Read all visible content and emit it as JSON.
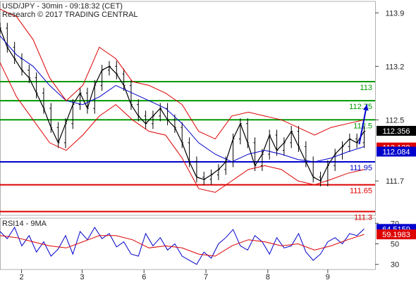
{
  "header": {
    "title": "USD/JPY - 30min - 09:18:32 (CET)",
    "copyright": "Research © 2017 TRADING CENTRAL"
  },
  "chart_data": [
    {
      "type": "line",
      "name": "price-panel",
      "title": "USD/JPY - 30min - 09:18:32 (CET)",
      "x_ticks": [
        "2",
        "3",
        "6",
        "7",
        "8",
        "9"
      ],
      "x_tick_positions_session": [
        0.65,
        2.48,
        4.35,
        6.22,
        8.09,
        9.9
      ],
      "x_range": [
        0,
        11.33
      ],
      "y_ticks": [
        111.7,
        112.5,
        113.2,
        113.9
      ],
      "y_tick_labels": [
        "111.7",
        "112.5",
        "113.2",
        "113.9"
      ],
      "ylim": [
        111.25,
        114.05
      ],
      "levels": [
        {
          "label": "113",
          "value": 113.0,
          "color": "#009900"
        },
        {
          "label": "112.75",
          "value": 112.75,
          "color": "#009900"
        },
        {
          "label": "112.5",
          "value": 112.5,
          "color": "#009900"
        },
        {
          "label": "111.95",
          "value": 111.95,
          "color": "#0000cc"
        },
        {
          "label": "111.65",
          "value": 111.65,
          "color": "#dd0000"
        },
        {
          "label": "111.3",
          "value": 111.3,
          "color": "#dd0000"
        }
      ],
      "price_badges": [
        {
          "label": "112.356",
          "value": 112.356,
          "color": "#000000"
        },
        {
          "label": "112.138",
          "value": 112.138,
          "color": "#dd0000"
        },
        {
          "label": "112.084",
          "value": 112.084,
          "color": "#0000cc"
        }
      ],
      "series": [
        {
          "role": "price",
          "color": "#000000",
          "x": [
            0,
            0.22,
            0.44,
            0.66,
            0.88,
            1.1,
            1.32,
            1.54,
            1.76,
            1.98,
            2.2,
            2.42,
            2.64,
            2.86,
            3.08,
            3.3,
            3.52,
            3.74,
            3.96,
            4.18,
            4.4,
            4.62,
            4.84,
            5.06,
            5.28,
            5.5,
            5.72,
            5.94,
            6.16,
            6.38,
            6.6,
            6.82,
            7.04,
            7.26,
            7.48,
            7.7,
            7.92,
            8.14,
            8.36,
            8.58,
            8.8,
            9.02,
            9.24,
            9.46,
            9.68,
            9.9,
            10.12,
            10.34,
            10.56,
            10.78,
            11.0
          ],
          "y": [
            113.7,
            113.45,
            113.3,
            113.15,
            113.05,
            112.85,
            112.65,
            112.4,
            112.2,
            112.45,
            112.7,
            112.85,
            112.65,
            112.95,
            113.15,
            113.2,
            113.1,
            112.95,
            112.7,
            112.55,
            112.45,
            112.55,
            112.65,
            112.5,
            112.4,
            112.2,
            111.95,
            111.75,
            111.72,
            111.78,
            111.85,
            111.95,
            112.25,
            112.45,
            112.2,
            111.9,
            112.05,
            112.3,
            112.1,
            112.2,
            112.35,
            112.15,
            111.95,
            111.75,
            111.7,
            111.9,
            112.05,
            112.15,
            112.25,
            112.2,
            112.35
          ]
        },
        {
          "role": "moving-average",
          "color": "#0000cc",
          "x": [
            0,
            0.5,
            1,
            1.5,
            2,
            2.5,
            3,
            3.5,
            4,
            4.5,
            5,
            5.5,
            6,
            6.5,
            7,
            7.5,
            8,
            8.5,
            9,
            9.5,
            10,
            10.5,
            11.0
          ],
          "y": [
            113.6,
            113.35,
            113.2,
            112.95,
            112.75,
            112.7,
            112.8,
            112.95,
            112.85,
            112.75,
            112.65,
            112.45,
            112.2,
            112.05,
            111.95,
            112.05,
            112.1,
            112.05,
            111.98,
            111.95,
            112.0,
            112.08,
            112.15
          ]
        },
        {
          "role": "upper-band",
          "color": "#dd0000",
          "x": [
            0,
            0.5,
            1,
            1.5,
            2,
            2.5,
            3,
            3.5,
            4,
            4.5,
            5,
            5.5,
            6,
            6.5,
            7,
            7.5,
            8,
            8.5,
            9,
            9.5,
            10,
            10.5,
            11.0
          ],
          "y": [
            113.95,
            113.85,
            113.55,
            113.05,
            112.75,
            112.95,
            113.45,
            113.3,
            113.0,
            112.95,
            112.85,
            112.7,
            112.35,
            112.25,
            112.55,
            112.6,
            112.55,
            112.5,
            112.4,
            112.3,
            112.4,
            112.45,
            112.5
          ]
        },
        {
          "role": "lower-band",
          "color": "#dd0000",
          "x": [
            0,
            0.5,
            1,
            1.5,
            2,
            2.5,
            3,
            3.5,
            4,
            4.5,
            5,
            5.5,
            6,
            6.5,
            7,
            7.5,
            8,
            8.5,
            9,
            9.5,
            10,
            10.5,
            11.0
          ],
          "y": [
            113.25,
            112.8,
            112.5,
            112.2,
            112.1,
            112.3,
            112.55,
            112.7,
            112.5,
            112.35,
            112.3,
            112.0,
            111.6,
            111.55,
            111.7,
            111.85,
            111.9,
            111.85,
            111.7,
            111.65,
            111.72,
            111.8,
            111.85
          ]
        }
      ],
      "forecast_arrow": {
        "from": [
          10.85,
          112.18
        ],
        "to": [
          11.08,
          112.7
        ],
        "color": "#0000cc"
      }
    },
    {
      "type": "line",
      "name": "rsi-panel",
      "title": "RSI14 - 9MA",
      "x_ticks": [
        "2",
        "3",
        "6",
        "7",
        "8",
        "9"
      ],
      "x_range": [
        0,
        11.33
      ],
      "y_ticks": [
        30,
        50,
        70
      ],
      "y_tick_labels": [
        "30",
        "50",
        "70"
      ],
      "ylim": [
        25,
        75
      ],
      "badges": [
        {
          "label": "64.5159",
          "value": 64.5159,
          "color": "#0000cc"
        },
        {
          "label": "59.1983",
          "value": 59.1983,
          "color": "#dd0000"
        }
      ],
      "series": [
        {
          "role": "rsi",
          "color": "#0000cc",
          "x": [
            0,
            0.22,
            0.44,
            0.66,
            0.88,
            1.1,
            1.32,
            1.54,
            1.76,
            1.98,
            2.2,
            2.42,
            2.64,
            2.86,
            3.08,
            3.3,
            3.52,
            3.74,
            3.96,
            4.18,
            4.4,
            4.62,
            4.84,
            5.06,
            5.28,
            5.5,
            5.72,
            5.94,
            6.16,
            6.38,
            6.6,
            6.82,
            7.04,
            7.26,
            7.48,
            7.7,
            7.92,
            8.14,
            8.36,
            8.58,
            8.8,
            9.02,
            9.24,
            9.46,
            9.68,
            9.9,
            10.12,
            10.34,
            10.56,
            10.78,
            11.0
          ],
          "y": [
            62,
            55,
            66,
            48,
            58,
            42,
            52,
            38,
            45,
            58,
            40,
            62,
            54,
            66,
            55,
            60,
            47,
            52,
            40,
            38,
            60,
            48,
            56,
            44,
            50,
            38,
            34,
            30,
            42,
            36,
            50,
            56,
            64,
            48,
            44,
            58,
            52,
            40,
            56,
            46,
            48,
            60,
            42,
            34,
            40,
            52,
            56,
            50,
            60,
            58,
            64.5
          ]
        },
        {
          "role": "rsi-ma",
          "color": "#dd0000",
          "x": [
            0,
            0.5,
            1,
            1.5,
            2,
            2.5,
            3,
            3.5,
            4,
            4.5,
            5,
            5.5,
            6,
            6.5,
            7,
            7.5,
            8,
            8.5,
            9,
            9.5,
            10,
            10.5,
            11.0
          ],
          "y": [
            58,
            56,
            52,
            48,
            46,
            52,
            58,
            58,
            54,
            46,
            48,
            46,
            40,
            38,
            48,
            54,
            52,
            48,
            50,
            44,
            48,
            54,
            59.2
          ]
        }
      ]
    }
  ]
}
